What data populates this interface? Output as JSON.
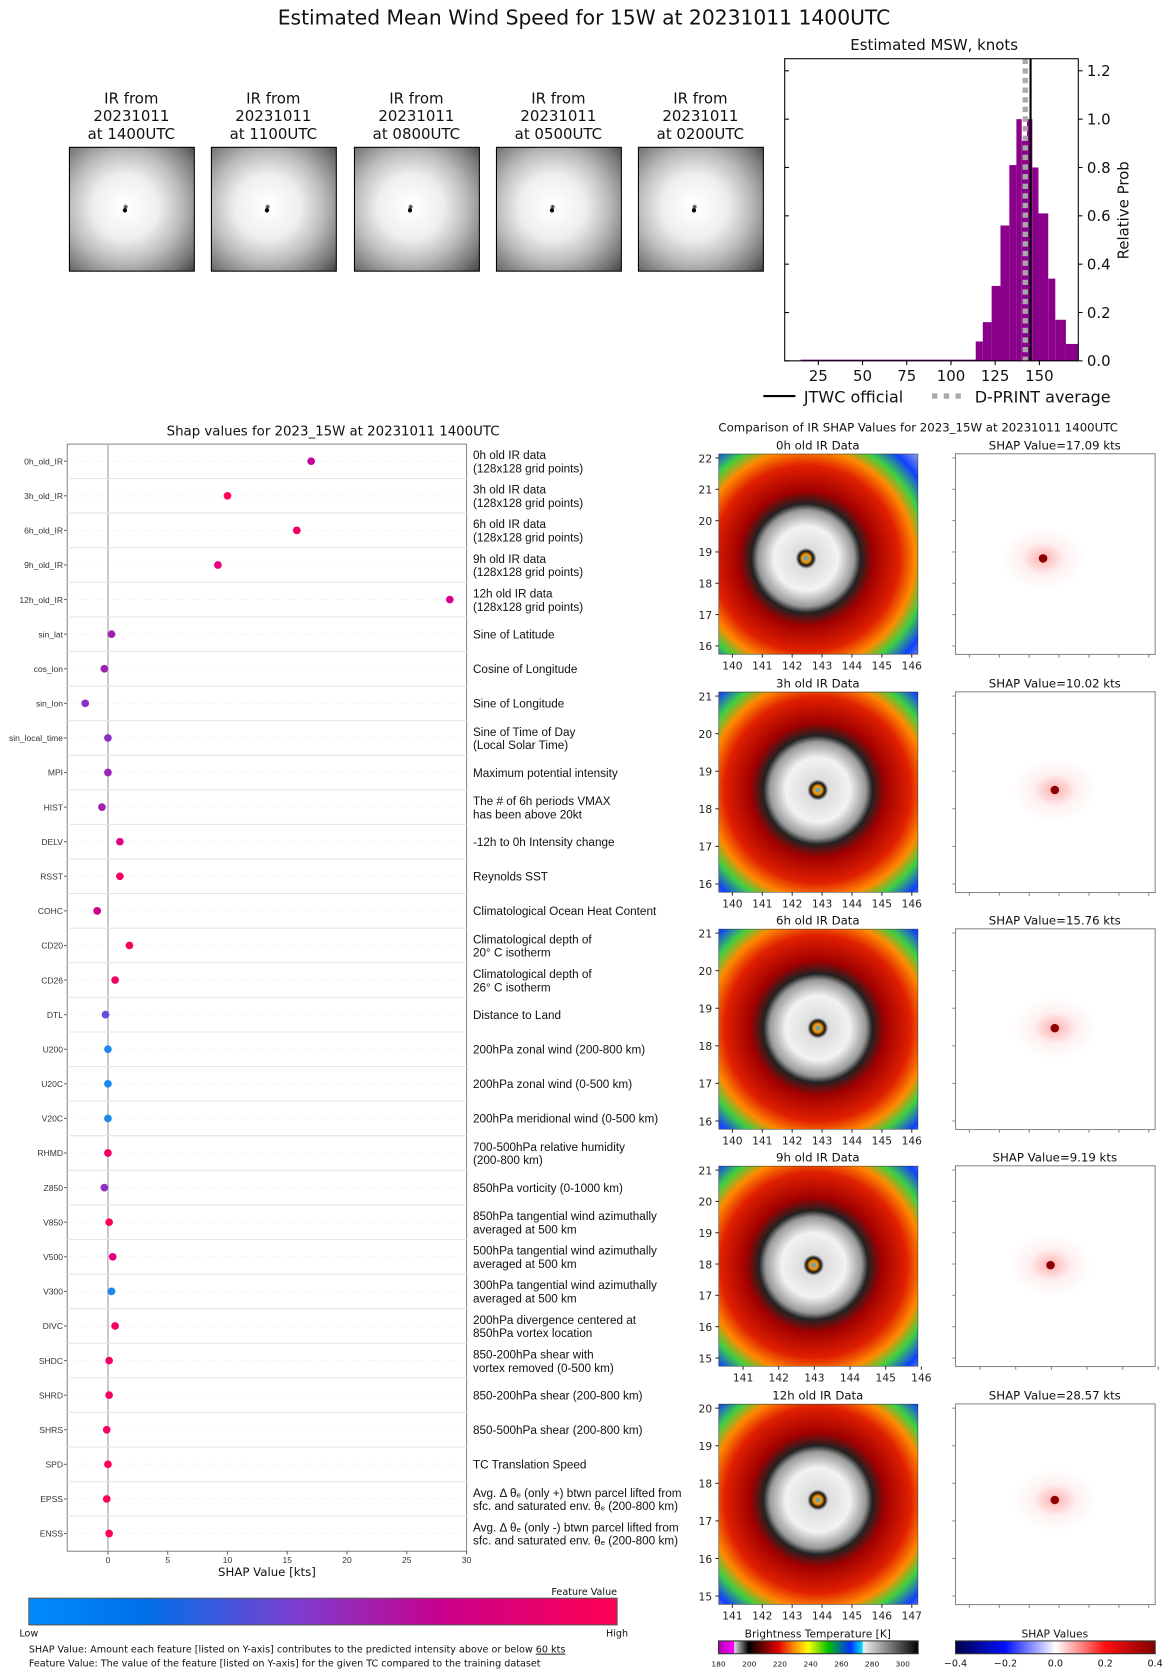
{
  "title": "Estimated Mean Wind Speed for 15W at 20231011 1400UTC",
  "thumbnails": [
    {
      "lines": [
        "IR from",
        "20231011",
        "at 1400UTC"
      ]
    },
    {
      "lines": [
        "IR from",
        "20231011",
        "at 1100UTC"
      ]
    },
    {
      "lines": [
        "IR from",
        "20231011",
        "at 0800UTC"
      ]
    },
    {
      "lines": [
        "IR from",
        "20231011",
        "at 0500UTC"
      ]
    },
    {
      "lines": [
        "IR from",
        "20231011",
        "at 0200UTC"
      ]
    }
  ],
  "chart_data": [
    {
      "type": "bar",
      "title": "Estimated MSW, knots",
      "xlabel": "",
      "ylabel": "Relative Prob",
      "xlim": [
        6,
        172
      ],
      "ylim": [
        0,
        1.25
      ],
      "xticks": [
        "25",
        "50",
        "75",
        "100",
        "125",
        "150"
      ],
      "yticks": [
        "0.0",
        "0.2",
        "0.4",
        "0.6",
        "0.8",
        "1.0",
        "1.2"
      ],
      "bar_color": "#8b008b",
      "bins": [
        {
          "from": 15,
          "to": 114,
          "value": 0.005
        },
        {
          "from": 114,
          "to": 118,
          "value": 0.08
        },
        {
          "from": 118,
          "to": 123,
          "value": 0.16
        },
        {
          "from": 123,
          "to": 128,
          "value": 0.31
        },
        {
          "from": 128,
          "to": 133,
          "value": 0.56
        },
        {
          "from": 133,
          "to": 137,
          "value": 0.81
        },
        {
          "from": 137,
          "to": 140,
          "value": 1.0
        },
        {
          "from": 140,
          "to": 143,
          "value": 0.91
        },
        {
          "from": 143,
          "to": 146,
          "value": 1.0
        },
        {
          "from": 146,
          "to": 149.5,
          "value": 0.8
        },
        {
          "from": 149.5,
          "to": 155,
          "value": 0.61
        },
        {
          "from": 155,
          "to": 159,
          "value": 0.34
        },
        {
          "from": 159,
          "to": 165,
          "value": 0.17
        },
        {
          "from": 165,
          "to": 172,
          "value": 0.07
        }
      ],
      "reference_lines": [
        {
          "name": "JTWC official",
          "x": 145,
          "style": "solid",
          "color": "#000000"
        },
        {
          "name": "D-PRINT average",
          "x": 142,
          "style": "dotted",
          "color": "#aaaaaa"
        }
      ],
      "legend_placement": "bottom"
    },
    {
      "type": "scatter",
      "title": "Shap values for 2023_15W at 20231011 1400UTC",
      "xlabel": "SHAP Value [kts]",
      "xlim": [
        -3.4,
        30
      ],
      "xticks": [
        "0",
        "5",
        "10",
        "15",
        "20",
        "25",
        "30"
      ],
      "features": [
        {
          "name": "0h_old_IR",
          "shap": 17.0,
          "color": "#c8009a",
          "description": [
            "0h old IR data",
            "(128x128 grid points)"
          ]
        },
        {
          "name": "3h_old_IR",
          "shap": 10.0,
          "color": "#ff0052",
          "description": [
            "3h old IR data",
            "(128x128 grid points)"
          ]
        },
        {
          "name": "6h_old_IR",
          "shap": 15.8,
          "color": "#f20068",
          "description": [
            "6h old IR data",
            "(128x128 grid points)"
          ]
        },
        {
          "name": "9h_old_IR",
          "shap": 9.2,
          "color": "#e8007a",
          "description": [
            "9h old IR data",
            "(128x128 grid points)"
          ]
        },
        {
          "name": "12h_old_IR",
          "shap": 28.6,
          "color": "#d80088",
          "description": [
            "12h old IR data",
            "(128x128 grid points)"
          ]
        },
        {
          "name": "sin_lat",
          "shap": 0.3,
          "color": "#a020b0",
          "description": [
            "Sine of Latitude"
          ]
        },
        {
          "name": "cos_lon",
          "shap": -0.3,
          "color": "#9a22b4",
          "description": [
            "Cosine of Longitude"
          ]
        },
        {
          "name": "sin_lon",
          "shap": -1.9,
          "color": "#8a30c8",
          "description": [
            "Sine of Longitude"
          ]
        },
        {
          "name": "sin_local_time",
          "shap": 0.0,
          "color": "#8a30c8",
          "description": [
            "Sine of Time of Day",
            "(Local Solar Time)"
          ]
        },
        {
          "name": "MPI",
          "shap": 0.0,
          "color": "#9a26b8",
          "description": [
            "Maximum potential intensity"
          ]
        },
        {
          "name": "HIST",
          "shap": -0.5,
          "color": "#a020b0",
          "description": [
            "The # of 6h periods VMAX",
            "has been above 20kt"
          ]
        },
        {
          "name": "DELV",
          "shap": 1.0,
          "color": "#e20080",
          "description": [
            "-12h to 0h Intensity change"
          ]
        },
        {
          "name": "RSST",
          "shap": 1.0,
          "color": "#f50060",
          "description": [
            "Reynolds SST"
          ]
        },
        {
          "name": "COHC",
          "shap": -0.9,
          "color": "#d0008c",
          "description": [
            "Climatological Ocean Heat Content"
          ]
        },
        {
          "name": "CD20",
          "shap": 1.8,
          "color": "#fa0058",
          "description": [
            "Climatological depth of",
            "20° C isotherm"
          ]
        },
        {
          "name": "CD26",
          "shap": 0.6,
          "color": "#f20062",
          "description": [
            "Climatological depth of",
            "26° C isotherm"
          ]
        },
        {
          "name": "DTL",
          "shap": -0.2,
          "color": "#6050d8",
          "description": [
            "Distance to Land"
          ]
        },
        {
          "name": "U200",
          "shap": 0.0,
          "color": "#1e88f0",
          "description": [
            "200hPa zonal wind (200-800 km)"
          ]
        },
        {
          "name": "U20C",
          "shap": 0.0,
          "color": "#1e88f0",
          "description": [
            "200hPa zonal wind (0-500 km)"
          ]
        },
        {
          "name": "V20C",
          "shap": 0.0,
          "color": "#1e88f0",
          "description": [
            "200hPa meridional wind (0-500 km)"
          ]
        },
        {
          "name": "RHMD",
          "shap": 0.0,
          "color": "#f20062",
          "description": [
            "700-500hPa relative humidity",
            "(200-800 km)"
          ]
        },
        {
          "name": "Z850",
          "shap": -0.3,
          "color": "#9030c0",
          "description": [
            "850hPa vorticity (0-1000 km)"
          ]
        },
        {
          "name": "V850",
          "shap": 0.1,
          "color": "#ff0055",
          "description": [
            "850hPa tangential wind azimuthally",
            "averaged at 500 km"
          ]
        },
        {
          "name": "V500",
          "shap": 0.4,
          "color": "#e20080",
          "description": [
            "500hPa tangential wind azimuthally",
            "averaged at 500 km"
          ]
        },
        {
          "name": "V300",
          "shap": 0.3,
          "color": "#1e88f0",
          "description": [
            "300hPa tangential wind azimuthally",
            "averaged at 500 km"
          ]
        },
        {
          "name": "DIVC",
          "shap": 0.6,
          "color": "#f20062",
          "description": [
            "200hPa divergence centered at",
            "850hPa vortex location"
          ]
        },
        {
          "name": "SHDC",
          "shap": 0.1,
          "color": "#f20062",
          "description": [
            "850-200hPa shear with",
            "vortex removed (0-500 km)"
          ]
        },
        {
          "name": "SHRD",
          "shap": 0.1,
          "color": "#f20062",
          "description": [
            "850-200hPa shear (200-800 km)"
          ]
        },
        {
          "name": "SHRS",
          "shap": -0.1,
          "color": "#f20062",
          "description": [
            "850-500hPa shear (200-800 km)"
          ]
        },
        {
          "name": "SPD",
          "shap": 0.0,
          "color": "#ff0055",
          "description": [
            "TC Translation Speed"
          ]
        },
        {
          "name": "EPSS",
          "shap": -0.1,
          "color": "#ff0055",
          "description": [
            "Avg. Δ θₑ (only +) btwn parcel lifted from",
            "sfc. and saturated env. θₑ (200-800 km)"
          ]
        },
        {
          "name": "ENSS",
          "shap": 0.1,
          "color": "#ff0055",
          "description": [
            "Avg. Δ θₑ (only -) btwn parcel lifted from",
            "sfc. and saturated env. θₑ (200-800 km)"
          ]
        }
      ]
    }
  ],
  "legend": {
    "jtwc": "JTWC official",
    "dprint": "D-PRINT average"
  },
  "feature_colorbar": {
    "title": "Feature Value",
    "low": "Low",
    "high": "High",
    "colors": [
      "#008bfb",
      "#0070e8",
      "#7a3fd0",
      "#c8008c",
      "#ff0052"
    ]
  },
  "footer": {
    "line1_prefix": "SHAP Value: Amount each feature [listed on Y-axis] contributes to the predicted intensity above or below ",
    "line1_value": "60 kts",
    "line2": "Feature Value: The value of the feature [listed on Y-axis] for the given TC compared to the training dataset"
  },
  "comparison": {
    "title": "Comparison of IR SHAP Values for 2023_15W at 20231011 1400UTC",
    "rows": [
      {
        "ir_title": "0h old IR Data",
        "shap_title": "SHAP Value=17.09 kts",
        "yticks": [
          "22",
          "21",
          "20",
          "19",
          "18",
          "17",
          "16"
        ],
        "xticks": [
          "140",
          "141",
          "142",
          "143",
          "144",
          "145",
          "146"
        ]
      },
      {
        "ir_title": "3h old IR Data",
        "shap_title": "SHAP Value=10.02 kts",
        "yticks": [
          "21",
          "20",
          "19",
          "18",
          "17",
          "16"
        ],
        "xticks": [
          "140",
          "141",
          "142",
          "143",
          "144",
          "145",
          "146"
        ]
      },
      {
        "ir_title": "6h old IR Data",
        "shap_title": "SHAP Value=15.76 kts",
        "yticks": [
          "21",
          "20",
          "19",
          "18",
          "17",
          "16"
        ],
        "xticks": [
          "140",
          "141",
          "142",
          "143",
          "144",
          "145",
          "146"
        ]
      },
      {
        "ir_title": "9h old IR Data",
        "shap_title": "SHAP Value=9.19 kts",
        "yticks": [
          "21",
          "20",
          "19",
          "18",
          "17",
          "16",
          "15"
        ],
        "xticks": [
          "141",
          "142",
          "143",
          "144",
          "145",
          "146"
        ]
      },
      {
        "ir_title": "12h old IR Data",
        "shap_title": "SHAP Value=28.57 kts",
        "yticks": [
          "20",
          "19",
          "18",
          "17",
          "16",
          "15"
        ],
        "xticks": [
          "141",
          "142",
          "143",
          "144",
          "145",
          "146",
          "147"
        ]
      }
    ],
    "bt_colorbar": {
      "title": "Brightness Temperature [K]",
      "ticks": [
        "180",
        "200",
        "220",
        "240",
        "260",
        "280",
        "300"
      ]
    },
    "shap_colorbar": {
      "title": "SHAP Values",
      "ticks": [
        "−0.4",
        "−0.2",
        "0.0",
        "0.2",
        "0.4"
      ]
    }
  }
}
